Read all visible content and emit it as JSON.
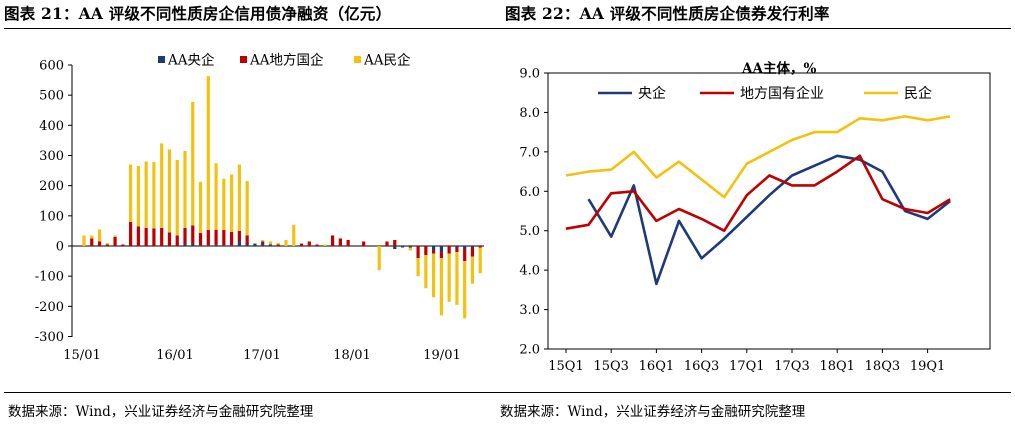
{
  "left_title": "图表 21：AA 评级不同性质房企信用债净融资（亿元）",
  "right_title": "图表 22：AA 评级不同性质房企债券发行利率",
  "left_source": "数据来源：Wind，兴业证券经济与金融研究院整理",
  "right_source": "数据来源：Wind，兴业证券经济与金融研究院整理",
  "colors": {
    "central": "#1f3a78",
    "local": "#c00000",
    "private": "#f2c20f"
  },
  "chart_data": [
    {
      "type": "bar",
      "title": "",
      "xlabel": "",
      "ylabel": "",
      "ylim": [
        -300,
        600
      ],
      "y_ticks": [
        "600",
        "500",
        "400",
        "300",
        "200",
        "100",
        "0",
        "-100",
        "-200",
        "-300"
      ],
      "x_tick_labels": [
        "15/01",
        "16/01",
        "17/01",
        "18/01",
        "19/01"
      ],
      "legend": [
        "AA央企",
        "AA地方国企",
        "AA民企"
      ],
      "legend_position": "top",
      "grid": false,
      "series": [
        {
          "name": "AA央企",
          "values": [
            0,
            0,
            0,
            0,
            0,
            0,
            0,
            0,
            0,
            0,
            0,
            0,
            0,
            5,
            8,
            3,
            3,
            4,
            3,
            2,
            15,
            5,
            8,
            10,
            5,
            0,
            0,
            0,
            0,
            0,
            0,
            0,
            0,
            0,
            0,
            0,
            0,
            0,
            0,
            0,
            -10,
            -5,
            -5,
            0,
            0,
            -15,
            -20,
            0,
            -5,
            -10,
            -5,
            0
          ]
        },
        {
          "name": "AA地方国企",
          "values": [
            0,
            25,
            15,
            5,
            30,
            5,
            80,
            65,
            60,
            58,
            60,
            45,
            35,
            55,
            60,
            40,
            50,
            50,
            50,
            45,
            35,
            30,
            0,
            5,
            0,
            5,
            0,
            0,
            8,
            15,
            5,
            0,
            35,
            25,
            20,
            0,
            15,
            0,
            0,
            15,
            20,
            0,
            0,
            -40,
            -30,
            -10,
            -20,
            -25,
            -15,
            -40,
            -30,
            -5
          ]
        },
        {
          "name": "AA民企",
          "values": [
            35,
            10,
            40,
            5,
            5,
            0,
            190,
            200,
            220,
            220,
            280,
            275,
            250,
            255,
            410,
            170,
            510,
            220,
            170,
            190,
            220,
            180,
            0,
            5,
            10,
            5,
            20,
            70,
            0,
            0,
            0,
            5,
            0,
            0,
            0,
            0,
            0,
            0,
            -80,
            0,
            0,
            0,
            -10,
            -60,
            -110,
            -145,
            -190,
            -160,
            -175,
            -190,
            -90,
            -85
          ]
        }
      ]
    },
    {
      "type": "line",
      "title": "AA主体，%",
      "xlabel": "",
      "ylabel": "",
      "ylim": [
        2.0,
        9.0
      ],
      "y_ticks": [
        "9.0",
        "8.0",
        "7.0",
        "6.0",
        "5.0",
        "4.0",
        "3.0",
        "2.0"
      ],
      "categories": [
        "15Q1",
        "15Q2",
        "15Q3",
        "15Q4",
        "16Q1",
        "16Q2",
        "16Q3",
        "16Q4",
        "17Q1",
        "17Q2",
        "17Q3",
        "17Q4",
        "18Q1",
        "18Q2",
        "18Q3",
        "18Q4",
        "19Q1",
        "19Q2"
      ],
      "x_tick_labels": [
        "15Q1",
        "15Q3",
        "16Q1",
        "16Q3",
        "17Q1",
        "17Q3",
        "18Q1",
        "18Q3",
        "19Q1"
      ],
      "legend": [
        "央企",
        "地方国有企业",
        "民企"
      ],
      "legend_position": "top",
      "grid": false,
      "series": [
        {
          "name": "央企",
          "values": [
            null,
            5.8,
            4.85,
            6.15,
            3.65,
            5.25,
            4.3,
            4.8,
            5.35,
            5.9,
            6.4,
            6.65,
            6.9,
            6.8,
            6.5,
            5.5,
            5.3,
            5.75
          ]
        },
        {
          "name": "地方国有企业",
          "values": [
            5.05,
            5.15,
            5.95,
            6.0,
            5.25,
            5.55,
            5.3,
            5.0,
            5.9,
            6.4,
            6.15,
            6.15,
            6.5,
            6.9,
            5.8,
            5.55,
            5.45,
            5.8
          ]
        },
        {
          "name": "民企",
          "values": [
            6.4,
            6.5,
            6.55,
            7.0,
            6.35,
            6.75,
            6.3,
            5.85,
            6.7,
            7.0,
            7.3,
            7.5,
            7.5,
            7.85,
            7.8,
            7.9,
            7.8,
            7.9
          ]
        }
      ]
    }
  ]
}
